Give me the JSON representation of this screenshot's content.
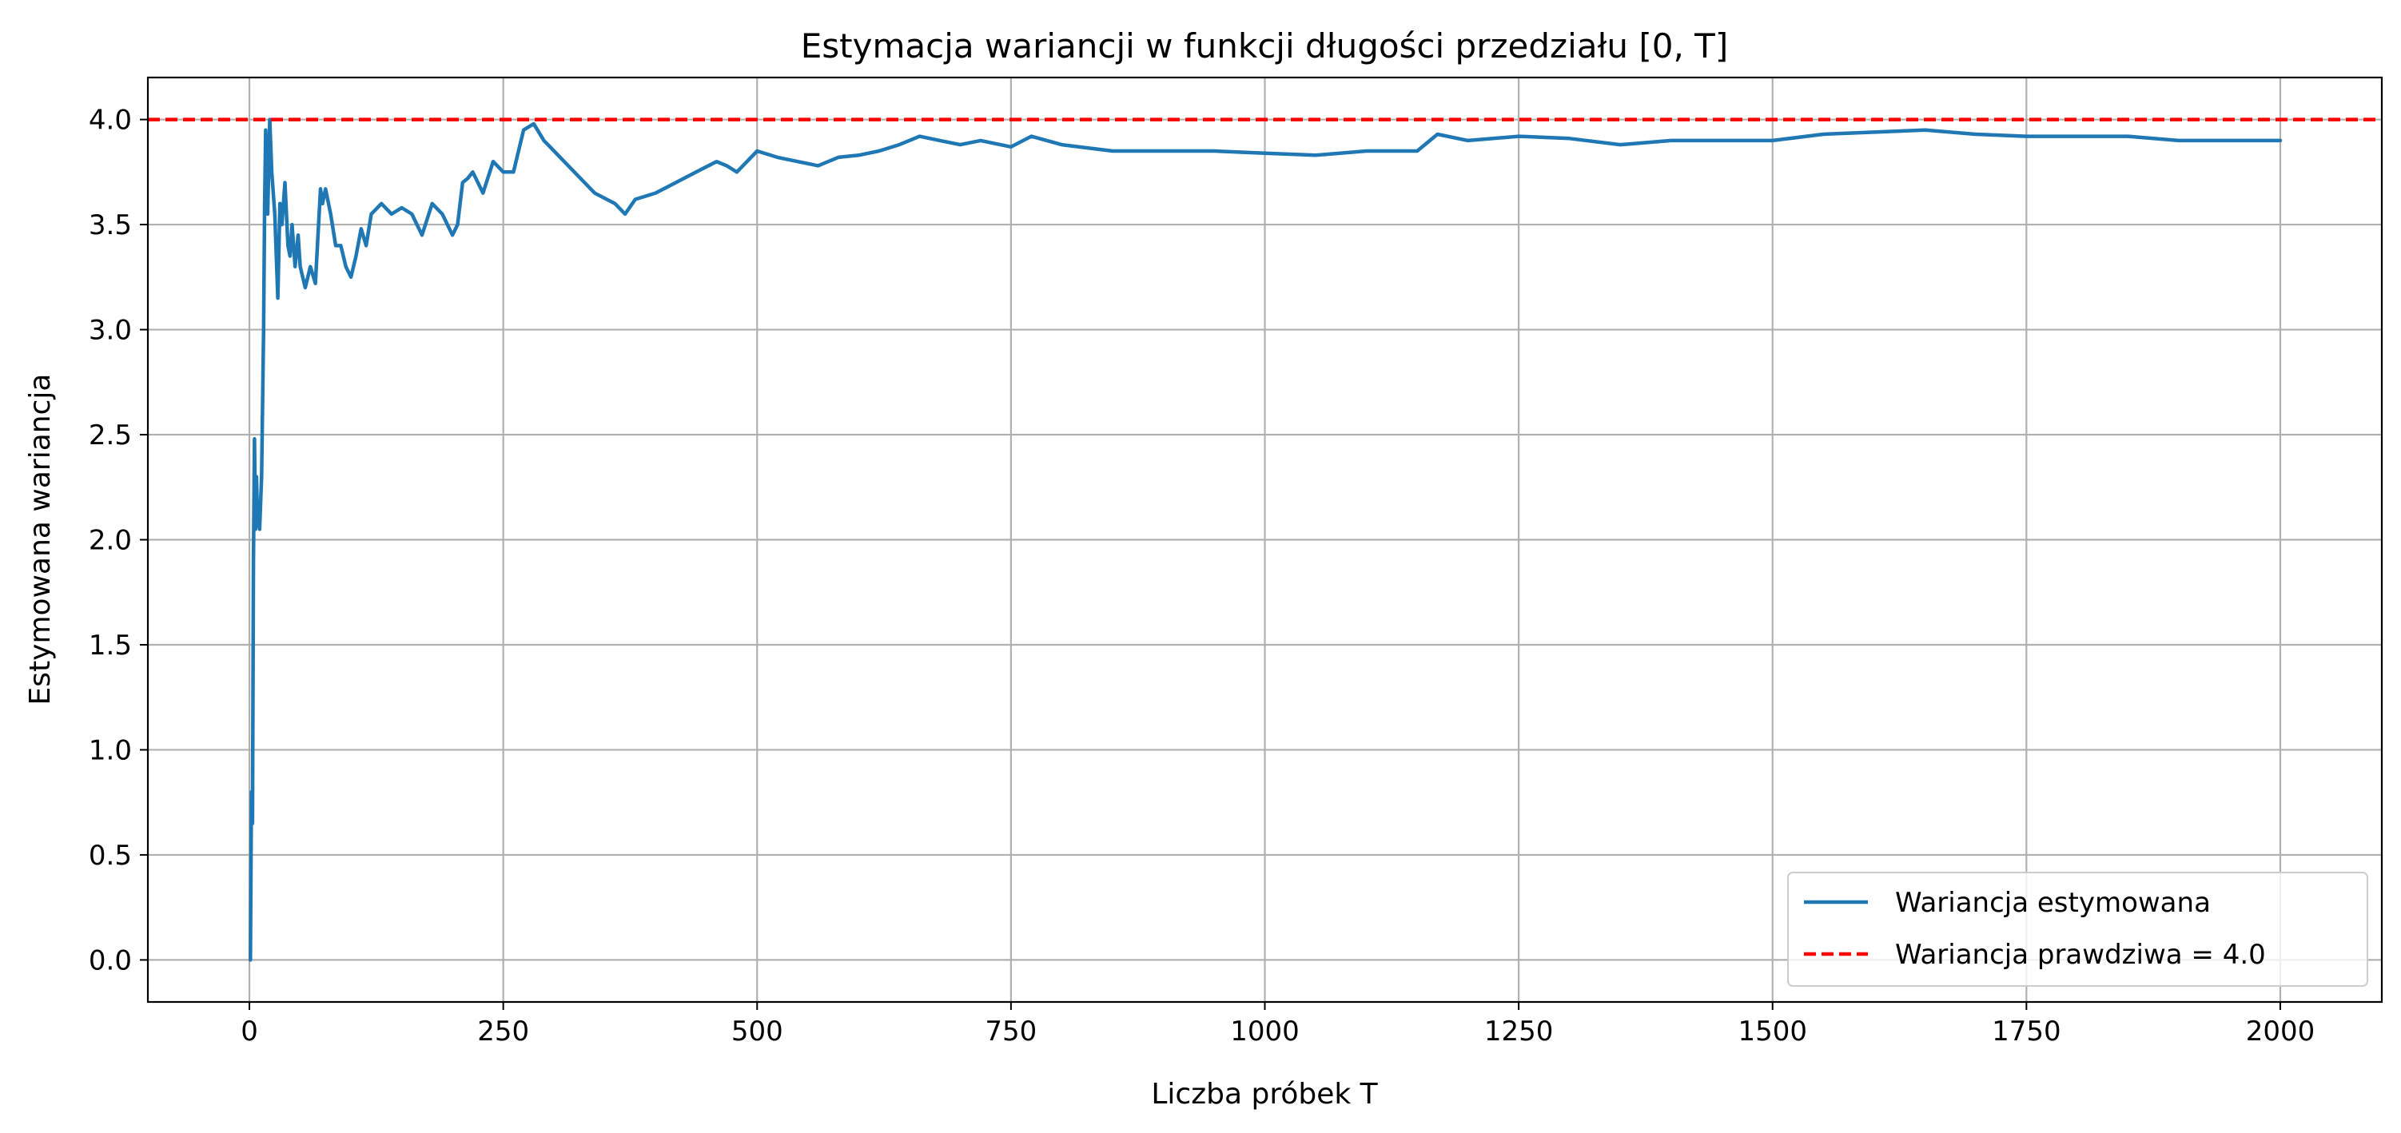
{
  "chart_data": {
    "type": "line",
    "title": "Estymacja wariancji w funkcji długości przedziału [0, T]",
    "xlabel": "Liczba próbek T",
    "ylabel": "Estymowana wariancja",
    "xlim": [
      -100,
      2100
    ],
    "ylim": [
      -0.2,
      4.2
    ],
    "xticks": [
      0,
      250,
      500,
      750,
      1000,
      1250,
      1500,
      1750,
      2000
    ],
    "yticks": [
      0.0,
      0.5,
      1.0,
      1.5,
      2.0,
      2.5,
      3.0,
      3.5,
      4.0
    ],
    "xtick_labels": [
      "0",
      "250",
      "500",
      "750",
      "1000",
      "1250",
      "1500",
      "1750",
      "2000"
    ],
    "ytick_labels": [
      "0.0",
      "0.5",
      "1.0",
      "1.5",
      "2.0",
      "2.5",
      "3.0",
      "3.5",
      "4.0"
    ],
    "grid": true,
    "legend_position": "lower-right",
    "series": [
      {
        "name": "Wariancja estymowana",
        "style": "solid",
        "color": "#1f77b4",
        "x": [
          1,
          2,
          3,
          4,
          5,
          6,
          7,
          8,
          10,
          12,
          14,
          15,
          16,
          18,
          20,
          22,
          25,
          28,
          30,
          32,
          35,
          38,
          40,
          42,
          45,
          48,
          50,
          55,
          60,
          65,
          70,
          72,
          75,
          80,
          85,
          90,
          95,
          100,
          105,
          110,
          115,
          120,
          130,
          140,
          150,
          160,
          170,
          180,
          190,
          200,
          205,
          210,
          215,
          220,
          230,
          240,
          250,
          260,
          270,
          280,
          290,
          300,
          320,
          340,
          360,
          370,
          380,
          400,
          420,
          440,
          460,
          470,
          480,
          500,
          520,
          540,
          560,
          580,
          600,
          620,
          640,
          660,
          680,
          700,
          720,
          750,
          770,
          800,
          850,
          900,
          950,
          1000,
          1050,
          1100,
          1150,
          1170,
          1200,
          1250,
          1300,
          1350,
          1400,
          1450,
          1500,
          1550,
          1600,
          1650,
          1700,
          1750,
          1800,
          1850,
          1900,
          1950,
          2000
        ],
        "values": [
          0.0,
          0.8,
          0.65,
          1.9,
          2.48,
          2.05,
          2.3,
          2.1,
          2.05,
          2.3,
          3.0,
          3.6,
          3.95,
          3.55,
          4.0,
          3.75,
          3.55,
          3.15,
          3.6,
          3.5,
          3.7,
          3.4,
          3.35,
          3.5,
          3.3,
          3.45,
          3.3,
          3.2,
          3.3,
          3.22,
          3.67,
          3.6,
          3.67,
          3.55,
          3.4,
          3.4,
          3.3,
          3.25,
          3.35,
          3.48,
          3.4,
          3.55,
          3.6,
          3.55,
          3.58,
          3.55,
          3.45,
          3.6,
          3.55,
          3.45,
          3.5,
          3.7,
          3.72,
          3.75,
          3.65,
          3.8,
          3.75,
          3.75,
          3.95,
          3.98,
          3.9,
          3.85,
          3.75,
          3.65,
          3.6,
          3.55,
          3.62,
          3.65,
          3.7,
          3.75,
          3.8,
          3.78,
          3.75,
          3.85,
          3.82,
          3.8,
          3.78,
          3.82,
          3.83,
          3.85,
          3.88,
          3.92,
          3.9,
          3.88,
          3.9,
          3.87,
          3.92,
          3.88,
          3.85,
          3.85,
          3.85,
          3.84,
          3.83,
          3.85,
          3.85,
          3.93,
          3.9,
          3.92,
          3.91,
          3.88,
          3.9,
          3.9,
          3.9,
          3.93,
          3.94,
          3.95,
          3.93,
          3.92,
          3.92,
          3.92,
          3.9,
          3.9,
          3.9
        ]
      },
      {
        "name": "Wariancja prawdziwa = 4.0",
        "style": "dashed",
        "color": "#ff0000",
        "x": [
          -100,
          2100
        ],
        "values": [
          4.0,
          4.0
        ]
      }
    ]
  }
}
